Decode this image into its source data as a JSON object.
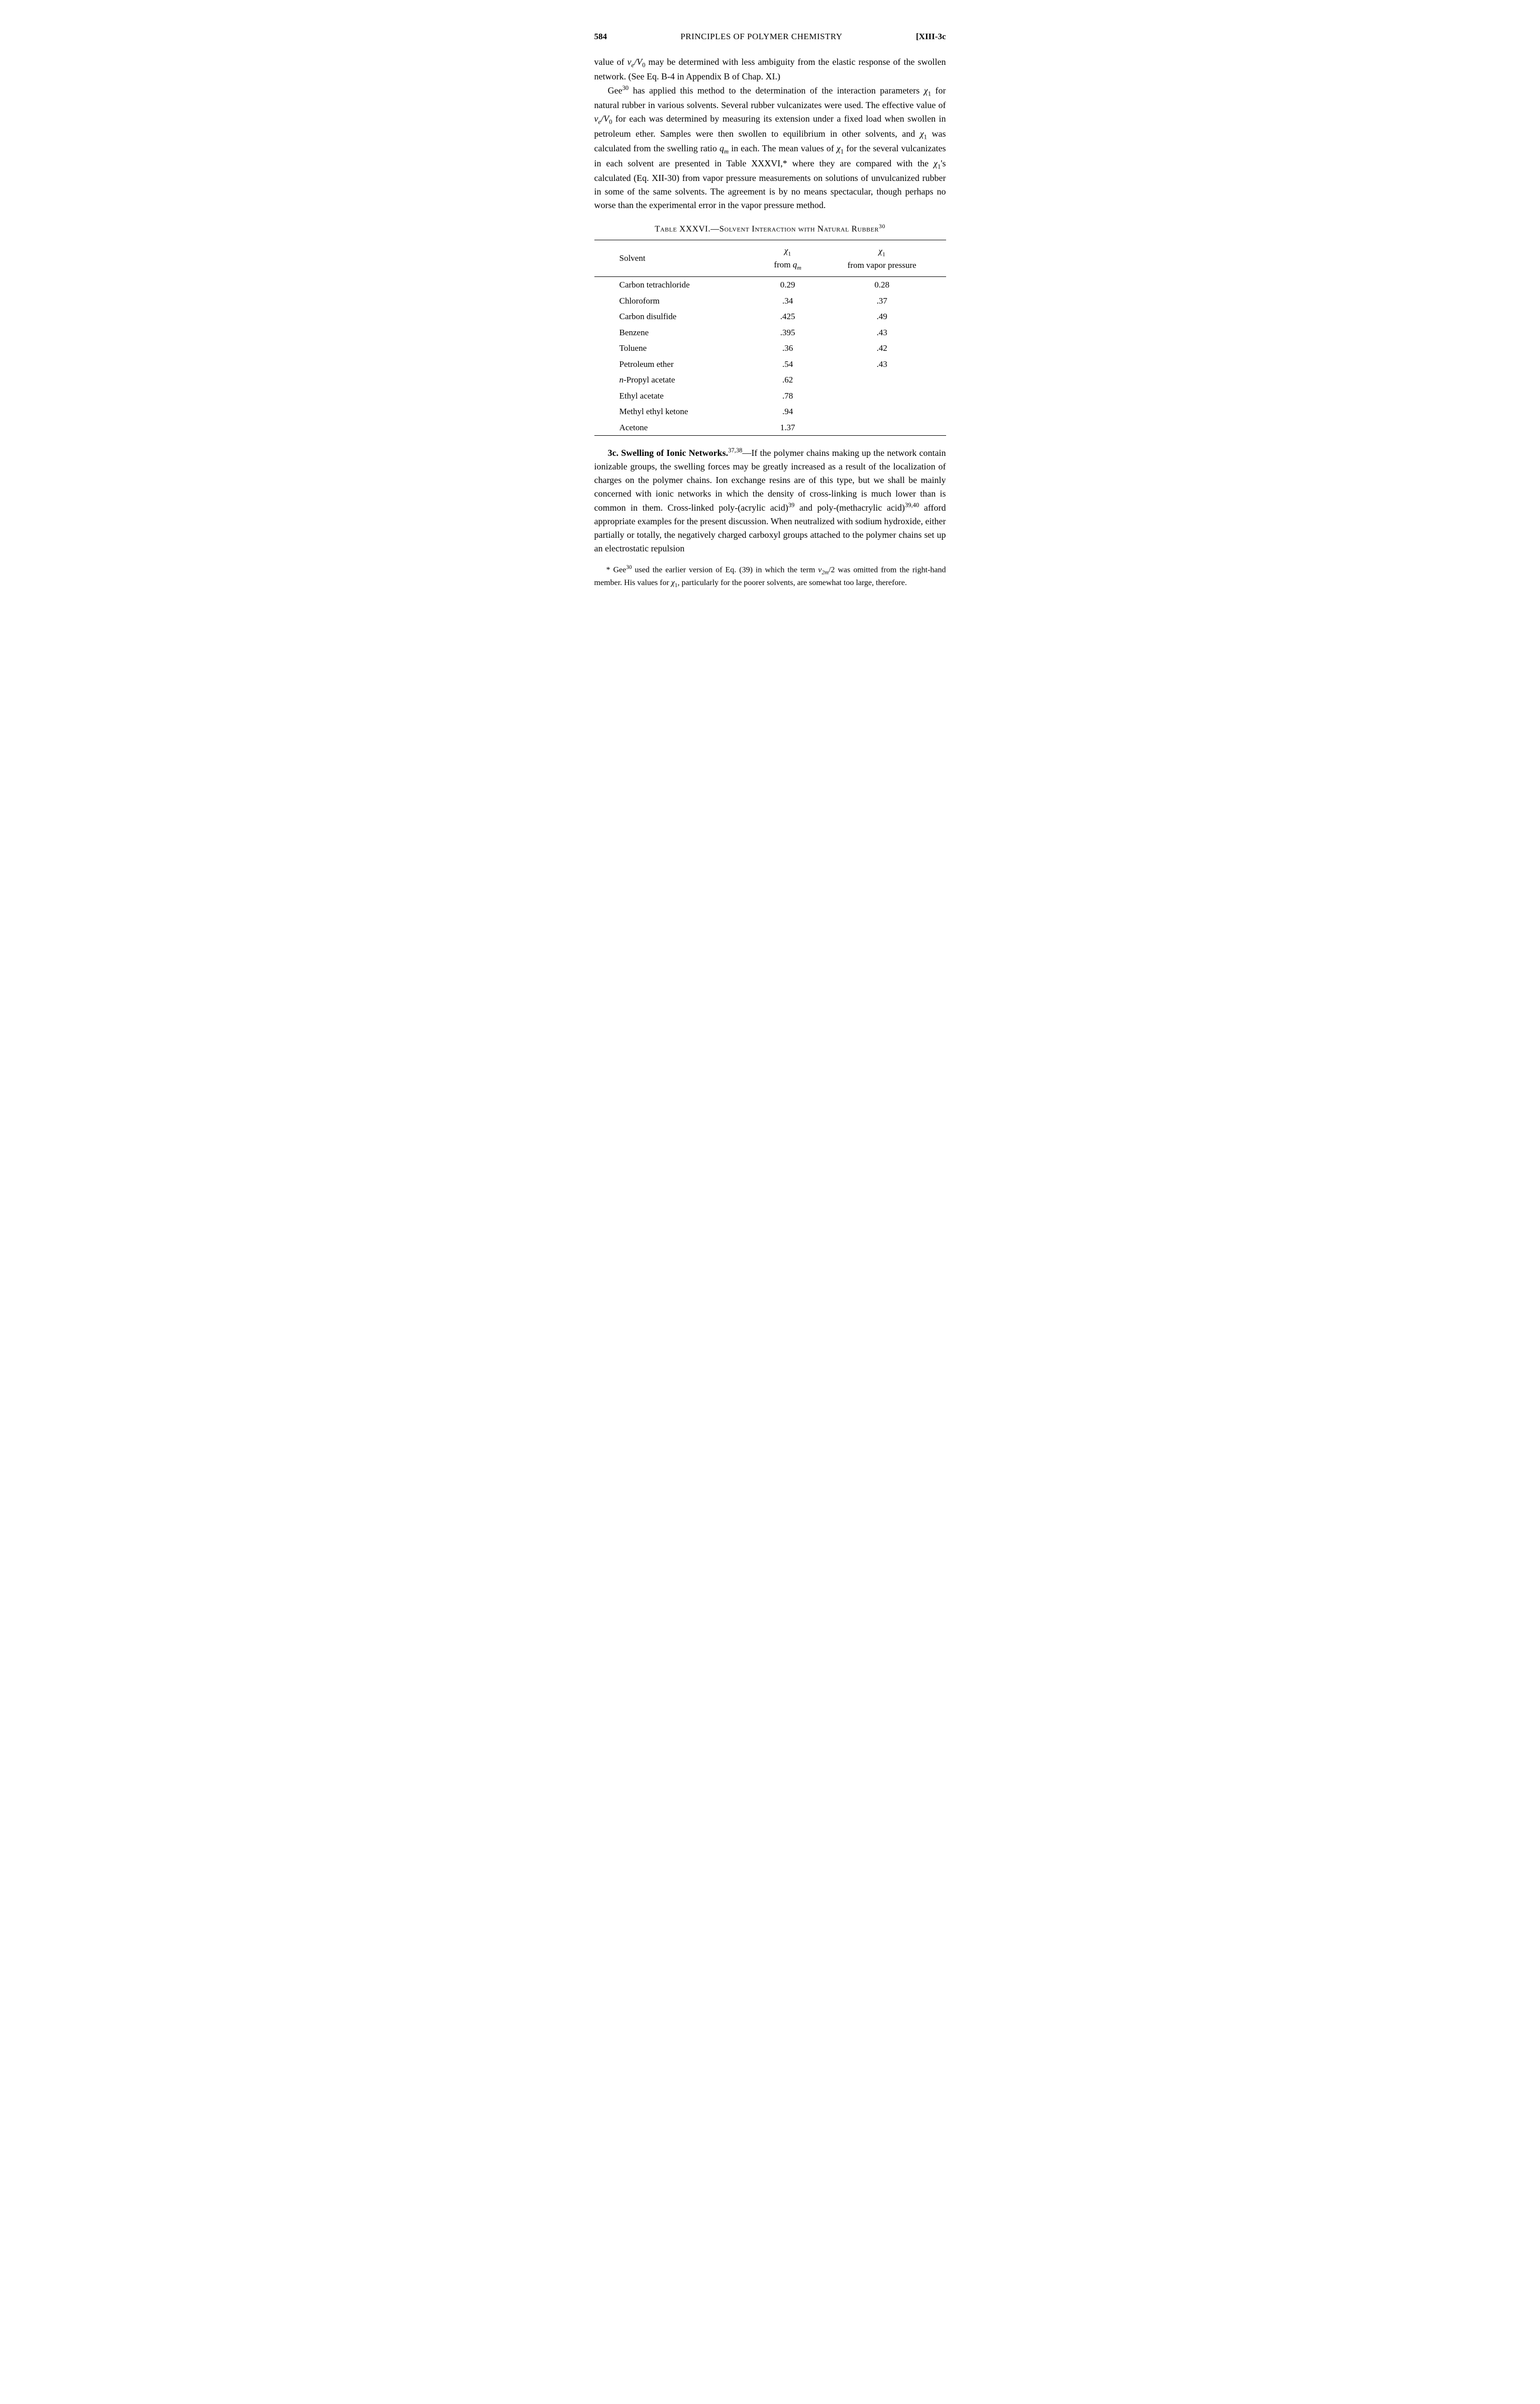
{
  "header": {
    "page_number": "584",
    "running_head": "PRINCIPLES OF POLYMER CHEMISTRY",
    "section_ref": "[XIII-3c"
  },
  "para1": {
    "part1": "value of ",
    "nu_e": "ν",
    "sub_e": "e",
    "slash_v0": "/V",
    "sub_0": "0",
    "part2": " may be determined with less ambiguity from the elastic response of the swollen network. (See Eq. B-4 in Appendix B of Chap. XI.)"
  },
  "para2": {
    "p1": "Gee",
    "sup30": "30",
    "p2": " has applied this method to the determination of the interaction parameters ",
    "chi1a": "χ",
    "sub1a": "1",
    "p3": " for natural rubber in various solvents. Several rubber vulcanizates were used. The effective value of ",
    "nu_e2": "ν",
    "sub_e2": "e",
    "slash_v02": "/V",
    "sub_02": "0",
    "p4": " for each was determined by measuring its extension under a fixed load when swollen in petroleum ether. Samples were then swollen to equilibrium in other solvents, and ",
    "chi1b": "χ",
    "sub1b": "1",
    "p5": " was calculated from the swelling ratio ",
    "qm": "q",
    "sub_m": "m",
    "p6": " in each. The mean values of ",
    "chi1c": "χ",
    "sub1c": "1",
    "p7": " for the several vulcanizates in each solvent are presented in Table XXXVI,* where they are compared with the ",
    "chi1d": "χ",
    "sub1d": "1",
    "p8": "'s calculated (Eq. XII-30) from vapor pressure measurements on solutions of unvulcanized rubber in some of the same solvents. The agreement is by no means spectacular, though perhaps no worse than the experimental error in the vapor pressure method."
  },
  "table": {
    "caption_pre": "Table XXXVI.—Solvent Interaction with Natural Rubber",
    "caption_sup": "30",
    "columns": {
      "solvent": "Solvent",
      "chi_q_line1": "χ",
      "chi_q_sub": "1",
      "chi_q_line2a": "from ",
      "chi_q_line2b": "q",
      "chi_q_line2c": "m",
      "chi_vp_line1": "χ",
      "chi_vp_sub": "1",
      "chi_vp_line2": "from vapor pressure"
    },
    "rows": [
      {
        "solvent": "Carbon tetrachloride",
        "qm": "0.29",
        "vp": "0.28"
      },
      {
        "solvent": "Chloroform",
        "qm": ".34",
        "vp": ".37"
      },
      {
        "solvent": "Carbon disulfide",
        "qm": ".425",
        "vp": ".49"
      },
      {
        "solvent": "Benzene",
        "qm": ".395",
        "vp": ".43"
      },
      {
        "solvent": "Toluene",
        "qm": ".36",
        "vp": ".42"
      },
      {
        "solvent": "Petroleum ether",
        "qm": ".54",
        "vp": ".43"
      },
      {
        "solvent_pre": "n",
        "solvent": "-Propyl acetate",
        "qm": ".62",
        "vp": ""
      },
      {
        "solvent": "Ethyl acetate",
        "qm": ".78",
        "vp": ""
      },
      {
        "solvent": "Methyl ethyl ketone",
        "qm": ".94",
        "vp": ""
      },
      {
        "solvent": "Acetone",
        "qm": "1.37",
        "vp": ""
      }
    ]
  },
  "para3": {
    "head": "3c. Swelling of Ionic Networks.",
    "sup3738": "37,38",
    "p1": "—If the polymer chains making up the network contain ionizable groups, the swelling forces may be greatly increased as a result of the localization of charges on the polymer chains. Ion exchange resins are of this type, but we shall be mainly concerned with ionic networks in which the density of cross-linking is much lower than is common in them. Cross-linked poly-(acrylic acid)",
    "sup39": "39",
    "p2": " and poly-(methacrylic acid)",
    "sup3940": "39,40",
    "p3": " afford appropriate examples for the present discussion. When neutralized with sodium hydroxide, either partially or totally, the negatively charged carboxyl groups attached to the polymer chains set up an electrostatic repulsion"
  },
  "footnote": {
    "p1": "* Gee",
    "sup30": "30",
    "p2": " used the earlier version of Eq. (39) in which the term ",
    "v2m": "v",
    "sub2m": "2m",
    "p3": "/2 was omitted from the right-hand member. His values for ",
    "chi1": "χ",
    "sub1": "1",
    "p4": ", particularly for the poorer solvents, are somewhat too large, therefore."
  }
}
